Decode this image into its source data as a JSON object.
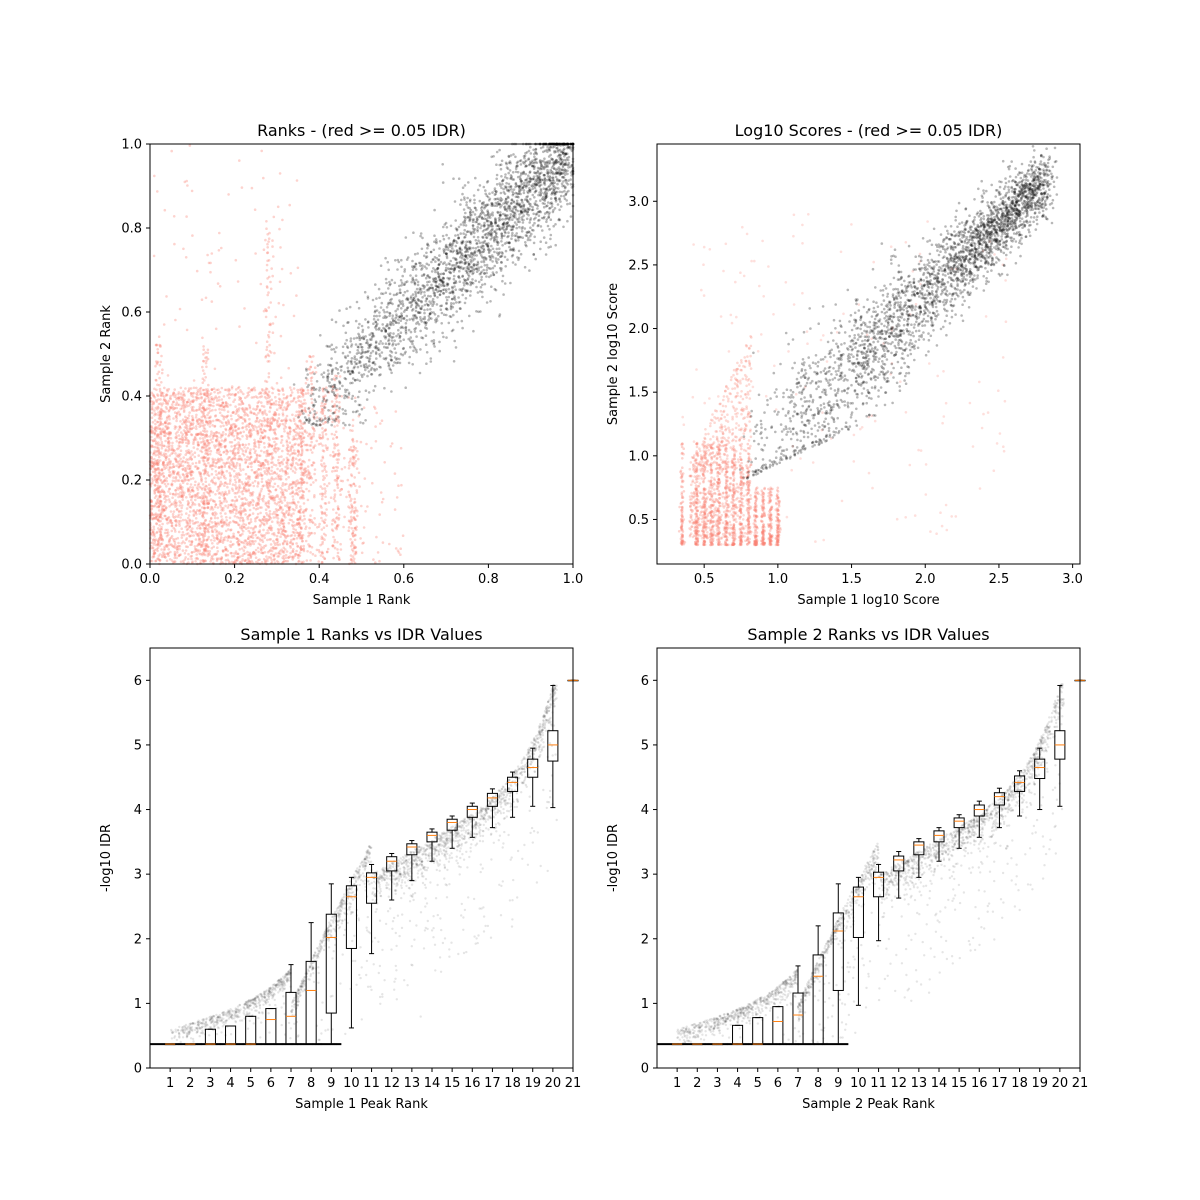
{
  "chart_data": [
    {
      "type": "scatter",
      "title": "Ranks - (red >= 0.05 IDR)",
      "xlabel": "Sample 1 Rank",
      "ylabel": "Sample 2 Rank",
      "xlim": [
        0,
        1
      ],
      "ylim": [
        0,
        1
      ],
      "xticks": [
        "0.0",
        "0.2",
        "0.4",
        "0.6",
        "0.8",
        "1.0"
      ],
      "yticks": [
        "0.0",
        "0.2",
        "0.4",
        "0.6",
        "0.8",
        "1.0"
      ],
      "colors": {
        "pass": "#000000",
        "fail": "#fa8072"
      },
      "series": [
        {
          "values_approx": "passing peaks along diagonal",
          "x_range": [
            0.33,
            1.0
          ],
          "y_range": [
            0.32,
            1.0
          ]
        },
        {
          "values_approx": "failing peaks in lower-left",
          "x_range": [
            0.0,
            0.6
          ],
          "y_range": [
            0.0,
            0.55
          ]
        }
      ]
    },
    {
      "type": "scatter",
      "title": "Log10 Scores - (red >= 0.05 IDR)",
      "xlabel": "Sample 1 log10 Score",
      "ylabel": "Sample 2 log10 Score",
      "xlim": [
        0.18,
        3.05
      ],
      "ylim": [
        0.15,
        3.45
      ],
      "xticks": [
        "0.5",
        "1.0",
        "1.5",
        "2.0",
        "2.5",
        "3.0"
      ],
      "yticks": [
        "0.5",
        "1.0",
        "1.5",
        "2.0",
        "2.5",
        "3.0"
      ],
      "colors": {
        "pass": "#000000",
        "fail": "#fa8072"
      },
      "series": [
        {
          "values_approx": "passing peaks along diagonal",
          "x_range": [
            0.72,
            2.85
          ],
          "y_range": [
            0.78,
            3.3
          ]
        },
        {
          "values_approx": "failing peaks at low scores",
          "x_range": [
            0.35,
            2.55
          ],
          "y_range": [
            0.3,
            2.0
          ]
        }
      ]
    },
    {
      "type": "box",
      "title": "Sample 1 Ranks vs IDR Values",
      "xlabel": "Sample 1 Peak Rank",
      "ylabel": "-log10 IDR",
      "xlim": [
        0,
        21
      ],
      "ylim": [
        0,
        6.5
      ],
      "xticks": [
        "1",
        "2",
        "3",
        "4",
        "5",
        "6",
        "7",
        "8",
        "9",
        "10",
        "11",
        "12",
        "13",
        "14",
        "15",
        "16",
        "17",
        "18",
        "19",
        "20",
        "21"
      ],
      "yticks": [
        "0",
        "1",
        "2",
        "3",
        "4",
        "5",
        "6"
      ],
      "boxes": [
        {
          "pos": 1,
          "q1": 0.37,
          "med": 0.37,
          "q3": 0.37,
          "wlo": 0.37,
          "whi": 0.37
        },
        {
          "pos": 2,
          "q1": 0.37,
          "med": 0.37,
          "q3": 0.37,
          "wlo": 0.37,
          "whi": 0.37
        },
        {
          "pos": 3,
          "q1": 0.37,
          "med": 0.37,
          "q3": 0.6,
          "wlo": 0.37,
          "whi": 0.6
        },
        {
          "pos": 4,
          "q1": 0.37,
          "med": 0.37,
          "q3": 0.65,
          "wlo": 0.37,
          "whi": 0.65
        },
        {
          "pos": 5,
          "q1": 0.37,
          "med": 0.37,
          "q3": 0.8,
          "wlo": 0.37,
          "whi": 0.8
        },
        {
          "pos": 6,
          "q1": 0.37,
          "med": 0.75,
          "q3": 0.92,
          "wlo": 0.37,
          "whi": 0.92
        },
        {
          "pos": 7,
          "q1": 0.37,
          "med": 0.8,
          "q3": 1.17,
          "wlo": 0.37,
          "whi": 1.6
        },
        {
          "pos": 8,
          "q1": 0.37,
          "med": 1.2,
          "q3": 1.65,
          "wlo": 0.37,
          "whi": 2.25
        },
        {
          "pos": 9,
          "q1": 0.85,
          "med": 2.02,
          "q3": 2.38,
          "wlo": 0.37,
          "whi": 2.85
        },
        {
          "pos": 10,
          "q1": 1.85,
          "med": 2.65,
          "q3": 2.82,
          "wlo": 0.62,
          "whi": 2.95
        },
        {
          "pos": 11,
          "q1": 2.55,
          "med": 2.95,
          "q3": 3.02,
          "wlo": 1.77,
          "whi": 3.15
        },
        {
          "pos": 12,
          "q1": 3.05,
          "med": 3.2,
          "q3": 3.27,
          "wlo": 2.6,
          "whi": 3.32
        },
        {
          "pos": 13,
          "q1": 3.3,
          "med": 3.42,
          "q3": 3.47,
          "wlo": 2.9,
          "whi": 3.52
        },
        {
          "pos": 14,
          "q1": 3.5,
          "med": 3.6,
          "q3": 3.65,
          "wlo": 3.2,
          "whi": 3.7
        },
        {
          "pos": 15,
          "q1": 3.68,
          "med": 3.8,
          "q3": 3.85,
          "wlo": 3.4,
          "whi": 3.9
        },
        {
          "pos": 16,
          "q1": 3.88,
          "med": 4.0,
          "q3": 4.05,
          "wlo": 3.57,
          "whi": 4.1
        },
        {
          "pos": 17,
          "q1": 4.05,
          "med": 4.18,
          "q3": 4.25,
          "wlo": 3.72,
          "whi": 4.32
        },
        {
          "pos": 18,
          "q1": 4.28,
          "med": 4.42,
          "q3": 4.5,
          "wlo": 3.88,
          "whi": 4.58
        },
        {
          "pos": 19,
          "q1": 4.5,
          "med": 4.65,
          "q3": 4.78,
          "wlo": 4.05,
          "whi": 4.95
        },
        {
          "pos": 20,
          "q1": 4.75,
          "med": 5.0,
          "q3": 5.22,
          "wlo": 4.03,
          "whi": 5.92
        },
        {
          "pos": 21,
          "q1": 6.0,
          "med": 6.0,
          "q3": 6.0,
          "wlo": 6.0,
          "whi": 6.0
        }
      ],
      "scatter": {
        "type": "scatter",
        "description": "one grey point per peak: -log10 IDR vs peak rank"
      }
    },
    {
      "type": "box",
      "title": "Sample 2 Ranks vs IDR Values",
      "xlabel": "Sample 2 Peak Rank",
      "ylabel": "-log10 IDR",
      "xlim": [
        0,
        21
      ],
      "ylim": [
        0,
        6.5
      ],
      "xticks": [
        "1",
        "2",
        "3",
        "4",
        "5",
        "6",
        "7",
        "8",
        "9",
        "10",
        "11",
        "12",
        "13",
        "14",
        "15",
        "16",
        "17",
        "18",
        "19",
        "20",
        "21"
      ],
      "yticks": [
        "0",
        "1",
        "2",
        "3",
        "4",
        "5",
        "6"
      ],
      "boxes": [
        {
          "pos": 1,
          "q1": 0.37,
          "med": 0.37,
          "q3": 0.37,
          "wlo": 0.37,
          "whi": 0.37
        },
        {
          "pos": 2,
          "q1": 0.37,
          "med": 0.37,
          "q3": 0.37,
          "wlo": 0.37,
          "whi": 0.37
        },
        {
          "pos": 3,
          "q1": 0.37,
          "med": 0.37,
          "q3": 0.37,
          "wlo": 0.37,
          "whi": 0.37
        },
        {
          "pos": 4,
          "q1": 0.37,
          "med": 0.37,
          "q3": 0.66,
          "wlo": 0.37,
          "whi": 0.66
        },
        {
          "pos": 5,
          "q1": 0.37,
          "med": 0.37,
          "q3": 0.78,
          "wlo": 0.37,
          "whi": 0.78
        },
        {
          "pos": 6,
          "q1": 0.37,
          "med": 0.72,
          "q3": 0.95,
          "wlo": 0.37,
          "whi": 0.95
        },
        {
          "pos": 7,
          "q1": 0.37,
          "med": 0.82,
          "q3": 1.16,
          "wlo": 0.37,
          "whi": 1.58
        },
        {
          "pos": 8,
          "q1": 0.37,
          "med": 1.42,
          "q3": 1.75,
          "wlo": 0.37,
          "whi": 2.2
        },
        {
          "pos": 9,
          "q1": 1.2,
          "med": 2.12,
          "q3": 2.4,
          "wlo": 0.37,
          "whi": 2.85
        },
        {
          "pos": 10,
          "q1": 2.02,
          "med": 2.65,
          "q3": 2.8,
          "wlo": 0.97,
          "whi": 2.95
        },
        {
          "pos": 11,
          "q1": 2.65,
          "med": 2.95,
          "q3": 3.03,
          "wlo": 1.97,
          "whi": 3.15
        },
        {
          "pos": 12,
          "q1": 3.05,
          "med": 3.22,
          "q3": 3.28,
          "wlo": 2.63,
          "whi": 3.35
        },
        {
          "pos": 13,
          "q1": 3.3,
          "med": 3.45,
          "q3": 3.5,
          "wlo": 2.95,
          "whi": 3.55
        },
        {
          "pos": 14,
          "q1": 3.5,
          "med": 3.6,
          "q3": 3.67,
          "wlo": 3.2,
          "whi": 3.72
        },
        {
          "pos": 15,
          "q1": 3.72,
          "med": 3.82,
          "q3": 3.87,
          "wlo": 3.4,
          "whi": 3.92
        },
        {
          "pos": 16,
          "q1": 3.9,
          "med": 4.0,
          "q3": 4.07,
          "wlo": 3.57,
          "whi": 4.13
        },
        {
          "pos": 17,
          "q1": 4.07,
          "med": 4.2,
          "q3": 4.26,
          "wlo": 3.72,
          "whi": 4.33
        },
        {
          "pos": 18,
          "q1": 4.28,
          "med": 4.42,
          "q3": 4.52,
          "wlo": 3.9,
          "whi": 4.6
        },
        {
          "pos": 19,
          "q1": 4.48,
          "med": 4.65,
          "q3": 4.78,
          "wlo": 4.0,
          "whi": 4.95
        },
        {
          "pos": 20,
          "q1": 4.78,
          "med": 5.0,
          "q3": 5.22,
          "wlo": 4.05,
          "whi": 5.92
        },
        {
          "pos": 21,
          "q1": 6.0,
          "med": 6.0,
          "q3": 6.0,
          "wlo": 6.0,
          "whi": 6.0
        }
      ],
      "scatter": {
        "type": "scatter",
        "description": "one grey point per peak: -log10 IDR vs peak rank"
      }
    }
  ]
}
